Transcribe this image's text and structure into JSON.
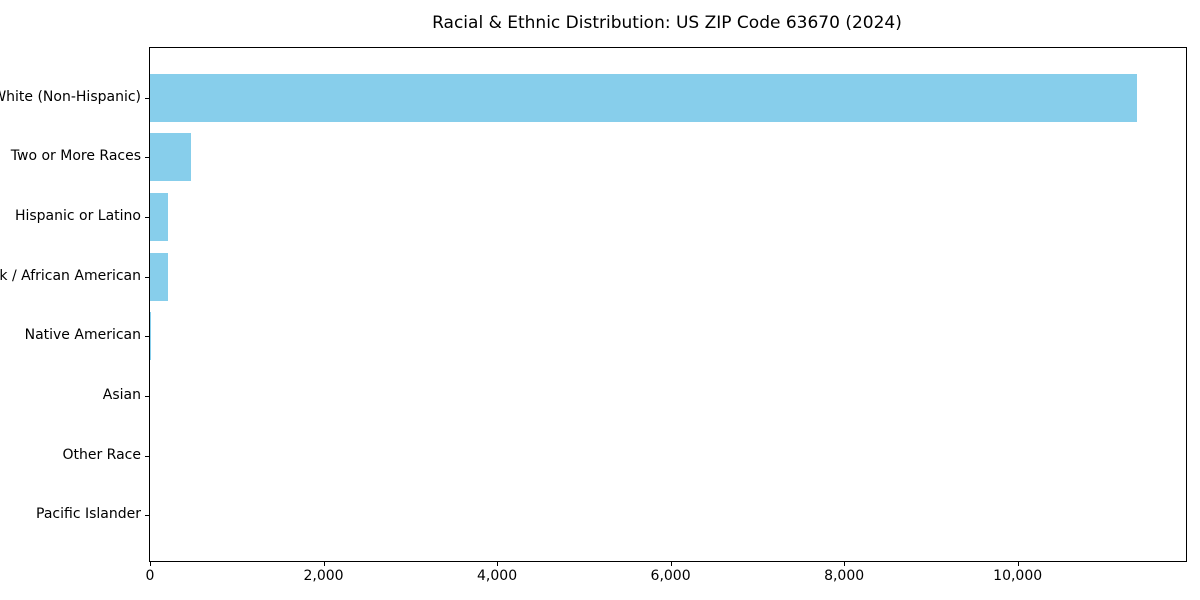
{
  "colors": {
    "bar": "#87CEEB",
    "axis": "#000000",
    "background": "#FFFFFF",
    "text": "#000000"
  },
  "chart_data": {
    "type": "bar",
    "orientation": "horizontal",
    "title": "Racial & Ethnic Distribution: US ZIP Code 63670 (2024)",
    "categories": [
      "White (Non-Hispanic)",
      "Two or More Races",
      "Hispanic or Latino",
      "Black / African American",
      "Native American",
      "Asian",
      "Other Race",
      "Pacific Islander"
    ],
    "values": [
      11370,
      470,
      210,
      205,
      10,
      0,
      0,
      0
    ],
    "xlabel": "",
    "ylabel": "",
    "xlim": [
      0,
      11940
    ],
    "x_ticks": [
      0,
      2000,
      4000,
      6000,
      8000,
      10000
    ],
    "x_tick_labels": [
      "0",
      "2,000",
      "4,000",
      "6,000",
      "8,000",
      "10,000"
    ],
    "grid": false,
    "legend": null,
    "bar_color": "#87CEEB",
    "sorted": "descending"
  }
}
